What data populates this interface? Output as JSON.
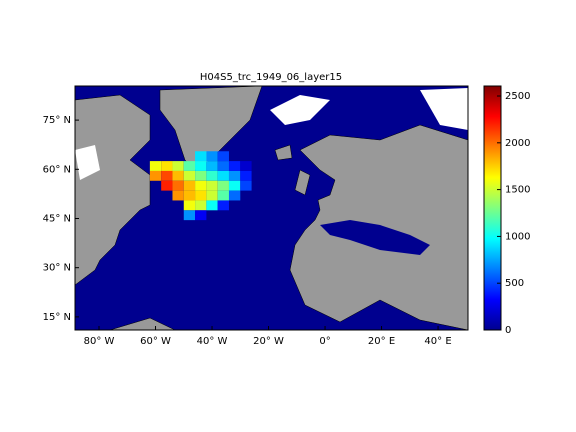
{
  "chart_data": {
    "type": "map",
    "title": "H04S5_trc_1949_06_layer15",
    "xlim": [
      -88.5,
      50.6
    ],
    "ylim": [
      11,
      85.4
    ],
    "xticks": [
      {
        "value": -80,
        "label": "80° W"
      },
      {
        "value": -60,
        "label": "60° W"
      },
      {
        "value": -40,
        "label": "40° W"
      },
      {
        "value": -20,
        "label": "20° W"
      },
      {
        "value": 0,
        "label": "0°"
      },
      {
        "value": 20,
        "label": "20° E"
      },
      {
        "value": 40,
        "label": "40° E"
      }
    ],
    "yticks": [
      {
        "value": 15,
        "label": "15° N"
      },
      {
        "value": 30,
        "label": "30° N"
      },
      {
        "value": 45,
        "label": "45° N"
      },
      {
        "value": 60,
        "label": "60° N"
      },
      {
        "value": 75,
        "label": "75° N"
      }
    ],
    "colorbar": {
      "clim": [
        0,
        2607
      ],
      "ticks": [
        0,
        500,
        1000,
        1500,
        2000,
        2500
      ],
      "colormap": "jet"
    },
    "field": {
      "lon": [
        -60,
        -56,
        -52,
        -48,
        -44,
        -40,
        -36,
        -32,
        -28,
        -60,
        -56,
        -52,
        -48,
        -44,
        -40,
        -36,
        -32,
        -28,
        -56,
        -52,
        -48,
        -44,
        -40,
        -36,
        -32,
        -28,
        -52,
        -48,
        -44,
        -40,
        -36,
        -32,
        -48,
        -44,
        -40,
        -36,
        -48,
        -44,
        -40,
        -36,
        -44
      ],
      "lat": [
        58,
        58,
        58,
        58,
        58,
        58,
        58,
        58,
        58,
        61,
        61,
        61,
        61,
        61,
        61,
        61,
        61,
        61,
        55,
        55,
        55,
        55,
        55,
        55,
        55,
        55,
        52,
        52,
        52,
        52,
        52,
        52,
        49,
        49,
        49,
        49,
        46,
        46,
        64,
        64,
        64
      ],
      "values": [
        1900,
        2100,
        1800,
        1500,
        1300,
        1100,
        900,
        700,
        400,
        1600,
        1700,
        1500,
        1200,
        1000,
        800,
        600,
        400,
        200,
        2200,
        2000,
        1800,
        1600,
        1500,
        1300,
        1000,
        500,
        1900,
        1800,
        1700,
        1500,
        1200,
        600,
        1600,
        1500,
        1000,
        400,
        700,
        300,
        700,
        500,
        900
      ]
    }
  }
}
